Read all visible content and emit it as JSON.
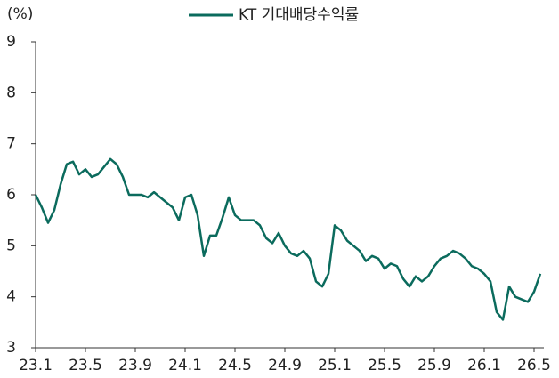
{
  "chart_data": {
    "type": "line",
    "y_label": "(%)",
    "categories": [
      "23.1",
      null,
      null,
      null,
      null,
      null,
      null,
      null,
      "23.5",
      null,
      null,
      null,
      null,
      null,
      null,
      null,
      "23.9",
      null,
      null,
      null,
      null,
      null,
      null,
      null,
      "24.1",
      null,
      null,
      null,
      null,
      null,
      null,
      null,
      "24.5",
      null,
      null,
      null,
      null,
      null,
      null,
      null,
      "24.9",
      null,
      null,
      null,
      null,
      null,
      null,
      null,
      "25.1",
      null,
      null,
      null,
      null,
      null,
      null,
      null,
      "25.5",
      null,
      null,
      null,
      null,
      null,
      null,
      null,
      "25.9",
      null,
      null,
      null,
      null,
      null,
      null,
      null,
      "26.1",
      null,
      null,
      null,
      null,
      null,
      null,
      null,
      "26.5",
      null
    ],
    "series": [
      {
        "name": "KT 기대배당수익률",
        "color": "#0b6b5d",
        "values": [
          6.0,
          5.75,
          5.45,
          5.7,
          6.2,
          6.6,
          6.65,
          6.4,
          6.5,
          6.35,
          6.4,
          6.55,
          6.7,
          6.6,
          6.35,
          6.0,
          6.0,
          6.0,
          5.95,
          6.05,
          5.95,
          5.85,
          5.75,
          5.5,
          5.95,
          6.0,
          5.6,
          4.8,
          5.2,
          5.2,
          5.55,
          5.95,
          5.6,
          5.5,
          5.5,
          5.5,
          5.4,
          5.15,
          5.05,
          5.25,
          5.0,
          4.85,
          4.8,
          4.9,
          4.75,
          4.3,
          4.2,
          4.45,
          5.4,
          5.3,
          5.1,
          5.0,
          4.9,
          4.7,
          4.8,
          4.75,
          4.55,
          4.65,
          4.6,
          4.35,
          4.2,
          4.4,
          4.3,
          4.4,
          4.6,
          4.75,
          4.8,
          4.9,
          4.85,
          4.75,
          4.6,
          4.55,
          4.45,
          4.3,
          3.7,
          3.55,
          4.2,
          4.0,
          3.95,
          3.9,
          4.1,
          4.45
        ]
      }
    ],
    "ylim": [
      3,
      9
    ],
    "yticks": [
      3,
      4,
      5,
      6,
      7,
      8,
      9
    ]
  }
}
